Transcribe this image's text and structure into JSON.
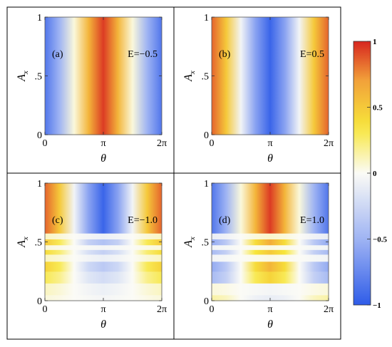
{
  "chart_data": [
    {
      "type": "heatmap",
      "panel_label": "(a)",
      "annotation": "E=−0.5",
      "xlabel": "θ",
      "ylabel": "A",
      "ylabel_subscript": "x",
      "xticks": [
        "0",
        "π",
        "2π"
      ],
      "yticks": [
        "0",
        ".5",
        "1"
      ],
      "xlim": [
        0,
        6.283
      ],
      "ylim": [
        0,
        1
      ],
      "x": [
        0,
        0.785,
        1.571,
        2.356,
        3.142,
        3.927,
        4.712,
        5.498,
        6.283
      ],
      "y": [
        0,
        0.5,
        1
      ],
      "z": [
        [
          -0.85,
          -0.5,
          0.05,
          0.6,
          0.95,
          0.6,
          0.05,
          -0.5,
          -0.85
        ],
        [
          -0.85,
          -0.5,
          0.05,
          0.6,
          0.95,
          0.6,
          0.05,
          -0.5,
          -0.85
        ],
        [
          -0.85,
          -0.5,
          0.05,
          0.6,
          0.95,
          0.6,
          0.05,
          -0.5,
          -0.85
        ]
      ]
    },
    {
      "type": "heatmap",
      "panel_label": "(b)",
      "annotation": "E=0.5",
      "xlabel": "θ",
      "ylabel": "A",
      "ylabel_subscript": "x",
      "xticks": [
        "0",
        "π",
        "2π"
      ],
      "yticks": [
        "0",
        ".5",
        "1"
      ],
      "xlim": [
        0,
        6.283
      ],
      "ylim": [
        0,
        1
      ],
      "x": [
        0,
        0.785,
        1.571,
        2.356,
        3.142,
        3.927,
        4.712,
        5.498,
        6.283
      ],
      "y": [
        0,
        0.5,
        1
      ],
      "z": [
        [
          0.85,
          0.5,
          -0.05,
          -0.6,
          -0.95,
          -0.6,
          -0.05,
          0.5,
          0.85
        ],
        [
          0.85,
          0.5,
          -0.05,
          -0.6,
          -0.95,
          -0.6,
          -0.05,
          0.5,
          0.85
        ],
        [
          0.85,
          0.5,
          -0.05,
          -0.6,
          -0.95,
          -0.6,
          -0.05,
          0.5,
          0.85
        ]
      ]
    },
    {
      "type": "heatmap",
      "panel_label": "(c)",
      "annotation": "E=−1.0",
      "xlabel": "θ",
      "ylabel": "A",
      "ylabel_subscript": "x",
      "xticks": [
        "0",
        "π",
        "2π"
      ],
      "yticks": [
        "0",
        ".5",
        "1"
      ],
      "xlim": [
        0,
        6.283
      ],
      "ylim": [
        0,
        1
      ],
      "x": [
        0,
        0.785,
        1.571,
        2.356,
        3.142,
        3.927,
        4.712,
        5.498,
        6.283
      ],
      "y": [
        0,
        0.1,
        0.2,
        0.3,
        0.37,
        0.42,
        0.45,
        0.5,
        0.55,
        0.6,
        0.8,
        1
      ],
      "z": [
        [
          0.05,
          0.03,
          0.0,
          -0.02,
          -0.04,
          -0.02,
          0.0,
          0.03,
          0.05
        ],
        [
          0.1,
          0.06,
          0.0,
          -0.05,
          -0.08,
          -0.05,
          0.0,
          0.06,
          0.1
        ],
        [
          0.3,
          0.2,
          0.0,
          -0.15,
          -0.22,
          -0.15,
          0.0,
          0.2,
          0.3
        ],
        [
          0.45,
          0.3,
          0.0,
          -0.25,
          -0.35,
          -0.25,
          0.0,
          0.3,
          0.45
        ],
        [
          0.1,
          0.06,
          0.0,
          -0.05,
          -0.08,
          -0.05,
          0.0,
          0.06,
          0.1
        ],
        [
          0.4,
          0.25,
          0.0,
          -0.2,
          -0.3,
          -0.2,
          0.0,
          0.25,
          0.4
        ],
        [
          0.05,
          0.03,
          0.0,
          -0.02,
          -0.04,
          -0.02,
          0.0,
          0.03,
          0.05
        ],
        [
          0.5,
          0.3,
          0.0,
          -0.3,
          -0.4,
          -0.3,
          0.0,
          0.3,
          0.5
        ],
        [
          0.1,
          0.06,
          0.0,
          -0.05,
          -0.08,
          -0.05,
          0.0,
          0.06,
          0.1
        ],
        [
          0.85,
          0.5,
          -0.05,
          -0.6,
          -0.95,
          -0.6,
          -0.05,
          0.5,
          0.85
        ],
        [
          0.85,
          0.5,
          -0.05,
          -0.6,
          -0.95,
          -0.6,
          -0.05,
          0.5,
          0.85
        ],
        [
          0.85,
          0.5,
          -0.05,
          -0.6,
          -0.95,
          -0.6,
          -0.05,
          0.5,
          0.85
        ]
      ]
    },
    {
      "type": "heatmap",
      "panel_label": "(d)",
      "annotation": "E=1.0",
      "xlabel": "θ",
      "ylabel": "A",
      "ylabel_subscript": "x",
      "xticks": [
        "0",
        "π",
        "2π"
      ],
      "yticks": [
        "0",
        ".5",
        "1"
      ],
      "xlim": [
        0,
        6.283
      ],
      "ylim": [
        0,
        1
      ],
      "x": [
        0,
        0.785,
        1.571,
        2.356,
        3.142,
        3.927,
        4.712,
        5.498,
        6.283
      ],
      "y": [
        0,
        0.1,
        0.2,
        0.3,
        0.37,
        0.42,
        0.45,
        0.5,
        0.55,
        0.6,
        0.8,
        1
      ],
      "z": [
        [
          0.15,
          0.1,
          0.0,
          -0.07,
          -0.1,
          -0.07,
          0.0,
          0.1,
          0.15
        ],
        [
          0.05,
          0.03,
          0.0,
          -0.02,
          -0.04,
          -0.02,
          0.0,
          0.03,
          0.05
        ],
        [
          -0.45,
          -0.3,
          0.0,
          0.3,
          0.45,
          0.3,
          0.0,
          -0.3,
          -0.45
        ],
        [
          -0.55,
          -0.35,
          0.0,
          0.4,
          0.6,
          0.4,
          0.0,
          -0.35,
          -0.55
        ],
        [
          -0.05,
          -0.03,
          0.0,
          0.02,
          0.04,
          0.02,
          0.0,
          -0.03,
          -0.05
        ],
        [
          -0.45,
          -0.3,
          0.0,
          0.35,
          0.5,
          0.35,
          0.0,
          -0.3,
          -0.45
        ],
        [
          -0.05,
          -0.03,
          0.0,
          0.02,
          0.04,
          0.02,
          0.0,
          -0.03,
          -0.05
        ],
        [
          -0.55,
          -0.35,
          0.0,
          0.4,
          0.65,
          0.4,
          0.0,
          -0.35,
          -0.55
        ],
        [
          -0.1,
          -0.06,
          0.0,
          0.05,
          0.08,
          0.05,
          0.0,
          -0.06,
          -0.1
        ],
        [
          -0.85,
          -0.5,
          0.05,
          0.6,
          0.95,
          0.6,
          0.05,
          -0.5,
          -0.85
        ],
        [
          -0.85,
          -0.5,
          0.05,
          0.6,
          0.95,
          0.6,
          0.05,
          -0.5,
          -0.85
        ],
        [
          -0.85,
          -0.5,
          0.05,
          0.6,
          0.95,
          0.6,
          0.05,
          -0.5,
          -0.85
        ]
      ]
    }
  ],
  "colorbar": {
    "range": [
      -1,
      1
    ],
    "ticks": [
      "1",
      "0.5",
      "0",
      "−0.5",
      "−1"
    ],
    "tick_values": [
      1,
      0.5,
      0,
      -0.5,
      -1
    ],
    "colors": {
      "min": "#2f5ce8",
      "low": "#9fb4f3",
      "mid": "#fbfbf6",
      "high_low": "#f7e63a",
      "high": "#f2a23a",
      "max": "#d7261f"
    }
  }
}
